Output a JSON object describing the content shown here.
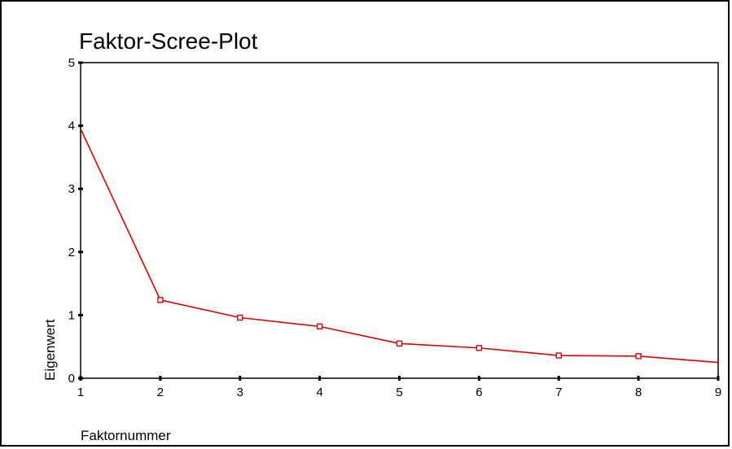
{
  "chart_data": {
    "type": "line",
    "title": "Faktor-Scree-Plot",
    "xlabel": "Faktornummer",
    "ylabel": "Eigenwert",
    "x": [
      1,
      2,
      3,
      4,
      5,
      6,
      7,
      8,
      9
    ],
    "series": [
      {
        "name": "",
        "values": [
          3.95,
          1.24,
          0.96,
          0.82,
          0.55,
          0.48,
          0.36,
          0.35,
          0.25
        ],
        "color": "#e00000"
      }
    ],
    "xlim": [
      1,
      9
    ],
    "ylim": [
      0,
      5
    ],
    "xticks": [
      1,
      2,
      3,
      4,
      5,
      6,
      7,
      8,
      9
    ],
    "yticks": [
      0,
      1,
      2,
      3,
      4,
      5
    ],
    "grid": false,
    "marker": "open-square"
  }
}
